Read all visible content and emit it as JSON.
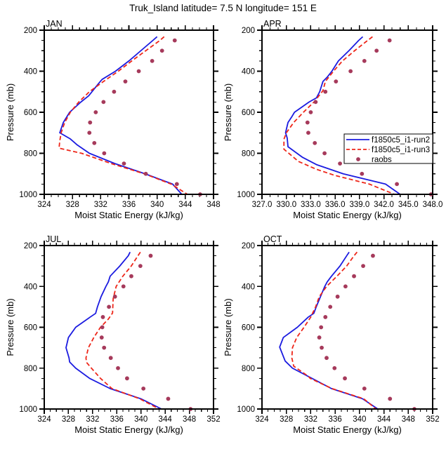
{
  "header": {
    "title": "Truk_Island  latitude= 7.5 N longitude= 151 E"
  },
  "colors": {
    "run2": "#1b1be0",
    "run3": "#ee2619",
    "raobs": "#a63a5b",
    "axis": "#000000",
    "background": "#ffffff"
  },
  "legend": {
    "location_panel": "APR",
    "entries": [
      {
        "label": "f1850c5_i1-run2",
        "style": "solid-line",
        "color": "#1b1be0"
      },
      {
        "label": "f1850c5_i1-run3",
        "style": "dashed-line",
        "color": "#ee2619"
      },
      {
        "label": "raobs",
        "style": "dot",
        "color": "#a63a5b"
      }
    ]
  },
  "chart_data": [
    {
      "type": "line",
      "title": "JAN",
      "xlabel": "Moist Static Energy (kJ/kg)",
      "ylabel": "Pressure (mb)",
      "xlim": [
        324,
        348
      ],
      "xtick_labels": [
        "324",
        "328",
        "332",
        "336",
        "340",
        "344",
        "348"
      ],
      "xminor_step": 1,
      "ylim": [
        1000,
        200
      ],
      "ytick_labels": [
        "200",
        "400",
        "600",
        "800",
        "1000"
      ],
      "yminor_step": 50,
      "y_inverted": true,
      "series": [
        {
          "name": "f1850c5_i1-run2",
          "type": "line",
          "dash": false,
          "color": "#1b1be0",
          "points_pv": [
            [
              232,
              340.0
            ],
            [
              250,
              339.4
            ],
            [
              300,
              337.7
            ],
            [
              350,
              336.0
            ],
            [
              400,
              334.1
            ],
            [
              440,
              332.2
            ],
            [
              460,
              331.7
            ],
            [
              520,
              330.3
            ],
            [
              550,
              329.2
            ],
            [
              600,
              327.6
            ],
            [
              650,
              326.7
            ],
            [
              700,
              326.2
            ],
            [
              730,
              327.7
            ],
            [
              760,
              328.7
            ],
            [
              800,
              330.4
            ],
            [
              850,
              334.0
            ],
            [
              900,
              338.3
            ],
            [
              950,
              342.2
            ],
            [
              1000,
              343.5
            ]
          ]
        },
        {
          "name": "f1850c5_i1-run3",
          "type": "line",
          "dash": true,
          "color": "#ee2619",
          "points_pv": [
            [
              232,
              341.0
            ],
            [
              250,
              340.4
            ],
            [
              300,
              338.4
            ],
            [
              350,
              336.4
            ],
            [
              400,
              334.5
            ],
            [
              450,
              332.4
            ],
            [
              500,
              330.4
            ],
            [
              550,
              328.9
            ],
            [
              600,
              327.7
            ],
            [
              650,
              326.9
            ],
            [
              700,
              326.4
            ],
            [
              740,
              326.2
            ],
            [
              775,
              326.1
            ],
            [
              800,
              329.3
            ],
            [
              850,
              333.5
            ],
            [
              900,
              338.2
            ],
            [
              950,
              342.0
            ],
            [
              1000,
              344.3
            ]
          ]
        },
        {
          "name": "raobs",
          "type": "scatter",
          "color": "#a63a5b",
          "points_pv": [
            [
              250,
              342.5
            ],
            [
              300,
              340.7
            ],
            [
              350,
              339.3
            ],
            [
              400,
              337.4
            ],
            [
              450,
              335.5
            ],
            [
              500,
              333.9
            ],
            [
              550,
              332.4
            ],
            [
              600,
              331.3
            ],
            [
              650,
              330.5
            ],
            [
              700,
              330.4
            ],
            [
              750,
              331.1
            ],
            [
              800,
              332.5
            ],
            [
              850,
              335.3
            ],
            [
              900,
              338.4
            ],
            [
              950,
              342.8
            ],
            [
              1000,
              346.1
            ]
          ]
        }
      ]
    },
    {
      "type": "line",
      "title": "APR",
      "xlabel": "Moist Static Energy (kJ/kg)",
      "ylabel": "Pressure (mb)",
      "xlim": [
        327,
        348
      ],
      "xtick_labels": [
        "327.0",
        "330.0",
        "333.0",
        "336.0",
        "339.0",
        "342.0",
        "345.0",
        "348.0"
      ],
      "xminor_step": 1,
      "ylim": [
        1000,
        200
      ],
      "ytick_labels": [
        "200",
        "400",
        "600",
        "800",
        "1000"
      ],
      "yminor_step": 50,
      "y_inverted": true,
      "series": [
        {
          "name": "f1850c5_i1-run2",
          "type": "line",
          "dash": false,
          "color": "#1b1be0",
          "points_pv": [
            [
              232,
              339.4
            ],
            [
              250,
              338.9
            ],
            [
              300,
              337.7
            ],
            [
              350,
              336.4
            ],
            [
              400,
              335.6
            ],
            [
              430,
              335.0
            ],
            [
              450,
              334.5
            ],
            [
              500,
              334.1
            ],
            [
              530,
              333.7
            ],
            [
              550,
              332.8
            ],
            [
              600,
              331.0
            ],
            [
              620,
              330.7
            ],
            [
              650,
              330.2
            ],
            [
              700,
              329.9
            ],
            [
              725,
              330.1
            ],
            [
              768,
              330.2
            ],
            [
              820,
              332.0
            ],
            [
              855,
              333.7
            ],
            [
              900,
              337.0
            ],
            [
              950,
              342.2
            ],
            [
              1000,
              344.0
            ]
          ]
        },
        {
          "name": "f1850c5_i1-run3",
          "type": "line",
          "dash": true,
          "color": "#ee2619",
          "points_pv": [
            [
              232,
              340.6
            ],
            [
              250,
              340.0
            ],
            [
              300,
              338.4
            ],
            [
              350,
              336.9
            ],
            [
              400,
              335.8
            ],
            [
              450,
              334.8
            ],
            [
              495,
              334.5
            ],
            [
              550,
              333.4
            ],
            [
              600,
              332.1
            ],
            [
              650,
              330.9
            ],
            [
              700,
              330.0
            ],
            [
              732,
              329.7
            ],
            [
              780,
              329.7
            ],
            [
              840,
              331.5
            ],
            [
              878,
              333.7
            ],
            [
              907,
              335.9
            ],
            [
              950,
              340.2
            ],
            [
              1000,
              343.3
            ]
          ]
        },
        {
          "name": "raobs",
          "type": "scatter",
          "color": "#a63a5b",
          "points_pv": [
            [
              250,
              342.7
            ],
            [
              300,
              341.1
            ],
            [
              350,
              339.6
            ],
            [
              400,
              337.9
            ],
            [
              450,
              336.1
            ],
            [
              500,
              334.8
            ],
            [
              550,
              333.6
            ],
            [
              600,
              333.0
            ],
            [
              650,
              332.6
            ],
            [
              700,
              332.7
            ],
            [
              750,
              333.5
            ],
            [
              800,
              334.7
            ],
            [
              850,
              336.6
            ],
            [
              900,
              339.3
            ],
            [
              950,
              343.6
            ],
            [
              1000,
              347.8
            ]
          ]
        }
      ]
    },
    {
      "type": "line",
      "title": "JUL",
      "xlabel": "Moist Static Energy (kJ/kg)",
      "ylabel": "Pressure (mb)",
      "xlim": [
        324,
        352
      ],
      "xtick_labels": [
        "324",
        "328",
        "332",
        "336",
        "340",
        "344",
        "348",
        "352"
      ],
      "xminor_step": 1,
      "ylim": [
        1000,
        200
      ],
      "ytick_labels": [
        "200",
        "400",
        "600",
        "800",
        "1000"
      ],
      "yminor_step": 50,
      "y_inverted": true,
      "series": [
        {
          "name": "f1850c5_i1-run2",
          "type": "line",
          "dash": false,
          "color": "#1b1be0",
          "points_pv": [
            [
              232,
              338.2
            ],
            [
              250,
              337.9
            ],
            [
              300,
              336.5
            ],
            [
              350,
              334.9
            ],
            [
              378,
              334.6
            ],
            [
              400,
              334.2
            ],
            [
              450,
              333.4
            ],
            [
              500,
              332.8
            ],
            [
              532,
              332.5
            ],
            [
              550,
              331.6
            ],
            [
              600,
              329.2
            ],
            [
              650,
              328.0
            ],
            [
              700,
              327.6
            ],
            [
              750,
              328.1
            ],
            [
              770,
              328.2
            ],
            [
              800,
              329.2
            ],
            [
              850,
              331.5
            ],
            [
              900,
              334.9
            ],
            [
              950,
              340.0
            ],
            [
              1000,
              343.4
            ]
          ]
        },
        {
          "name": "f1850c5_i1-run3",
          "type": "line",
          "dash": true,
          "color": "#ee2619",
          "points_pv": [
            [
              232,
              339.9
            ],
            [
              250,
              339.5
            ],
            [
              300,
              338.4
            ],
            [
              350,
              337.0
            ],
            [
              400,
              335.9
            ],
            [
              460,
              335.4
            ],
            [
              530,
              335.3
            ],
            [
              560,
              334.6
            ],
            [
              600,
              333.3
            ],
            [
              650,
              332.2
            ],
            [
              700,
              331.3
            ],
            [
              750,
              330.9
            ],
            [
              772,
              331.0
            ],
            [
              800,
              331.8
            ],
            [
              850,
              333.3
            ],
            [
              900,
              335.2
            ],
            [
              950,
              339.8
            ],
            [
              1000,
              343.0
            ]
          ]
        },
        {
          "name": "raobs",
          "type": "scatter",
          "color": "#a63a5b",
          "points_pv": [
            [
              250,
              341.6
            ],
            [
              300,
              339.9
            ],
            [
              350,
              338.4
            ],
            [
              400,
              337.1
            ],
            [
              450,
              335.7
            ],
            [
              500,
              334.7
            ],
            [
              550,
              333.7
            ],
            [
              600,
              333.6
            ],
            [
              650,
              333.5
            ],
            [
              700,
              333.9
            ],
            [
              750,
              335.0
            ],
            [
              800,
              336.2
            ],
            [
              850,
              337.7
            ],
            [
              900,
              340.4
            ],
            [
              950,
              344.5
            ],
            [
              1000,
              348.2
            ]
          ]
        }
      ]
    },
    {
      "type": "line",
      "title": "OCT",
      "xlabel": "Moist Static Energy (kJ/kg)",
      "ylabel": "Pressure (mb)",
      "xlim": [
        324,
        352
      ],
      "xtick_labels": [
        "324",
        "328",
        "332",
        "336",
        "340",
        "344",
        "348",
        "352"
      ],
      "xminor_step": 1,
      "ylim": [
        1000,
        200
      ],
      "ytick_labels": [
        "200",
        "400",
        "600",
        "800",
        "1000"
      ],
      "yminor_step": 50,
      "y_inverted": true,
      "series": [
        {
          "name": "f1850c5_i1-run2",
          "type": "line",
          "dash": false,
          "color": "#1b1be0",
          "points_pv": [
            [
              232,
              338.3
            ],
            [
              250,
              337.9
            ],
            [
              300,
              336.8
            ],
            [
              350,
              335.4
            ],
            [
              378,
              334.7
            ],
            [
              400,
              334.3
            ],
            [
              450,
              333.6
            ],
            [
              500,
              332.9
            ],
            [
              532,
              332.5
            ],
            [
              550,
              331.6
            ],
            [
              600,
              329.8
            ],
            [
              650,
              327.5
            ],
            [
              697,
              326.9
            ],
            [
              765,
              327.8
            ],
            [
              800,
              329.0
            ],
            [
              850,
              332.2
            ],
            [
              900,
              335.4
            ],
            [
              950,
              340.5
            ],
            [
              1000,
              343.0
            ]
          ]
        },
        {
          "name": "f1850c5_i1-run3",
          "type": "line",
          "dash": true,
          "color": "#ee2619",
          "points_pv": [
            [
              232,
              339.6
            ],
            [
              250,
              339.1
            ],
            [
              300,
              337.9
            ],
            [
              350,
              336.3
            ],
            [
              400,
              334.6
            ],
            [
              450,
              333.4
            ],
            [
              500,
              332.8
            ],
            [
              550,
              332.0
            ],
            [
              600,
              330.9
            ],
            [
              650,
              329.7
            ],
            [
              700,
              329.0
            ],
            [
              750,
              328.9
            ],
            [
              790,
              329.2
            ],
            [
              840,
              331.6
            ],
            [
              850,
              331.9
            ],
            [
              900,
              335.5
            ],
            [
              950,
              340.7
            ],
            [
              1000,
              342.7
            ]
          ]
        },
        {
          "name": "raobs",
          "type": "scatter",
          "color": "#a63a5b",
          "points_pv": [
            [
              250,
              342.2
            ],
            [
              300,
              340.6
            ],
            [
              350,
              339.1
            ],
            [
              400,
              337.7
            ],
            [
              450,
              336.4
            ],
            [
              500,
              335.2
            ],
            [
              550,
              334.4
            ],
            [
              600,
              333.7
            ],
            [
              650,
              333.4
            ],
            [
              700,
              333.8
            ],
            [
              750,
              334.6
            ],
            [
              800,
              335.9
            ],
            [
              850,
              337.6
            ],
            [
              900,
              340.8
            ],
            [
              950,
              345.0
            ],
            [
              1000,
              349.0
            ]
          ]
        }
      ]
    }
  ]
}
